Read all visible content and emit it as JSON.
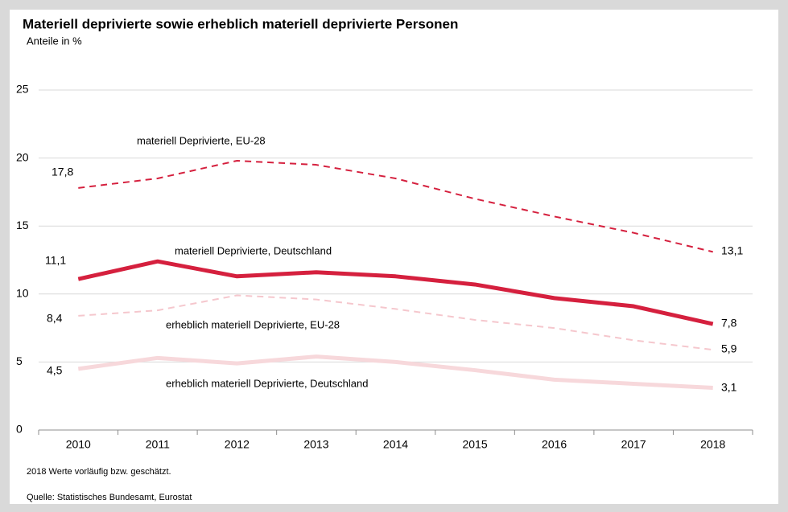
{
  "chart_data": {
    "type": "line",
    "title": "Materiell deprivierte sowie erheblich materiell deprivierte Personen",
    "subtitle": "Anteile in %",
    "categories": [
      "2010",
      "2011",
      "2012",
      "2013",
      "2014",
      "2015",
      "2016",
      "2017",
      "2018"
    ],
    "series": [
      {
        "name": "materiell Deprivierte, EU-28",
        "color": "#d5203e",
        "dashed": true,
        "width": 2,
        "values": [
          17.8,
          18.5,
          19.8,
          19.5,
          18.5,
          17.0,
          15.7,
          14.5,
          13.1
        ],
        "value_labels": [
          "17,8",
          null,
          null,
          null,
          null,
          null,
          null,
          null,
          "13,1"
        ]
      },
      {
        "name": "materiell Deprivierte, Deutschland",
        "color": "#d5203e",
        "dashed": false,
        "width": 5,
        "values": [
          11.1,
          12.4,
          11.3,
          11.6,
          11.3,
          10.7,
          9.7,
          9.1,
          7.8
        ],
        "value_labels": [
          "11,1",
          null,
          null,
          null,
          null,
          null,
          null,
          null,
          "7,8"
        ]
      },
      {
        "name": "erheblich materiell Deprivierte, EU-28",
        "color": "#f5c7cd",
        "dashed": true,
        "width": 2,
        "values": [
          8.4,
          8.8,
          9.9,
          9.6,
          8.9,
          8.1,
          7.5,
          6.6,
          5.9
        ],
        "value_labels": [
          "8,4",
          null,
          null,
          null,
          null,
          null,
          null,
          null,
          "5,9"
        ]
      },
      {
        "name": "erheblich materiell Deprivierte, Deutschland",
        "color": "#f7d8db",
        "dashed": false,
        "width": 5,
        "values": [
          4.5,
          5.3,
          4.9,
          5.4,
          5.0,
          4.4,
          3.7,
          3.4,
          3.1
        ],
        "value_labels": [
          "4,5",
          null,
          null,
          null,
          null,
          null,
          null,
          null,
          "3,1"
        ]
      }
    ],
    "ylim": [
      0,
      25
    ],
    "yticks": [
      0,
      5,
      10,
      15,
      20,
      25
    ],
    "grid": true,
    "notes": [
      "2018 Werte vorläufig bzw. geschätzt.",
      "Quelle: Statistisches Bundesamt, Eurostat"
    ]
  }
}
